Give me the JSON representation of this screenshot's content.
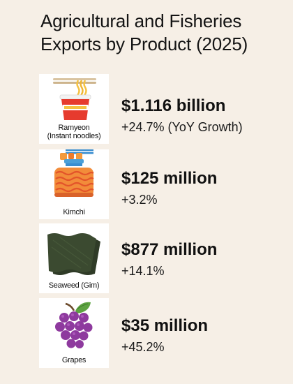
{
  "chart_data": {
    "type": "table",
    "title": "Agricultural and Fisheries Exports by Product (2025)",
    "items": [
      {
        "product": "Ramyeon (Instant noodles)",
        "product_line1": "Ramyeon",
        "product_line2": "(Instant noodles)",
        "export_value": "$1.116 billion",
        "export_value_usd": 1116000000,
        "yoy_growth": "+24.7% (YoY Growth)",
        "yoy_growth_pct": 24.7,
        "icon": "instant-noodle-cup-icon"
      },
      {
        "product": "Kimchi",
        "product_line1": "Kimchi",
        "product_line2": "",
        "export_value": "$125 million",
        "export_value_usd": 125000000,
        "yoy_growth": "+3.2%",
        "yoy_growth_pct": 3.2,
        "icon": "kimchi-jar-icon"
      },
      {
        "product": "Seaweed (Gim)",
        "product_line1": "Seaweed (Gim)",
        "product_line2": "",
        "export_value": "$877 million",
        "export_value_usd": 877000000,
        "yoy_growth": "+14.1%",
        "yoy_growth_pct": 14.1,
        "icon": "seaweed-sheets-icon"
      },
      {
        "product": "Grapes",
        "product_line1": "Grapes",
        "product_line2": "",
        "export_value": "$35 million",
        "export_value_usd": 35000000,
        "yoy_growth": "+45.2%",
        "yoy_growth_pct": 45.2,
        "icon": "grapes-icon"
      }
    ]
  },
  "colors": {
    "background": "#f6efe6",
    "card": "#ffffff",
    "noodle_cup": "#e63b2e",
    "noodle": "#f5c242",
    "kimchi_jar": "#f28c3a",
    "kimchi_lid": "#4a9fd8",
    "seaweed": "#3b4a30",
    "grapes": "#8e3a9e",
    "grape_leaf": "#5da341"
  }
}
